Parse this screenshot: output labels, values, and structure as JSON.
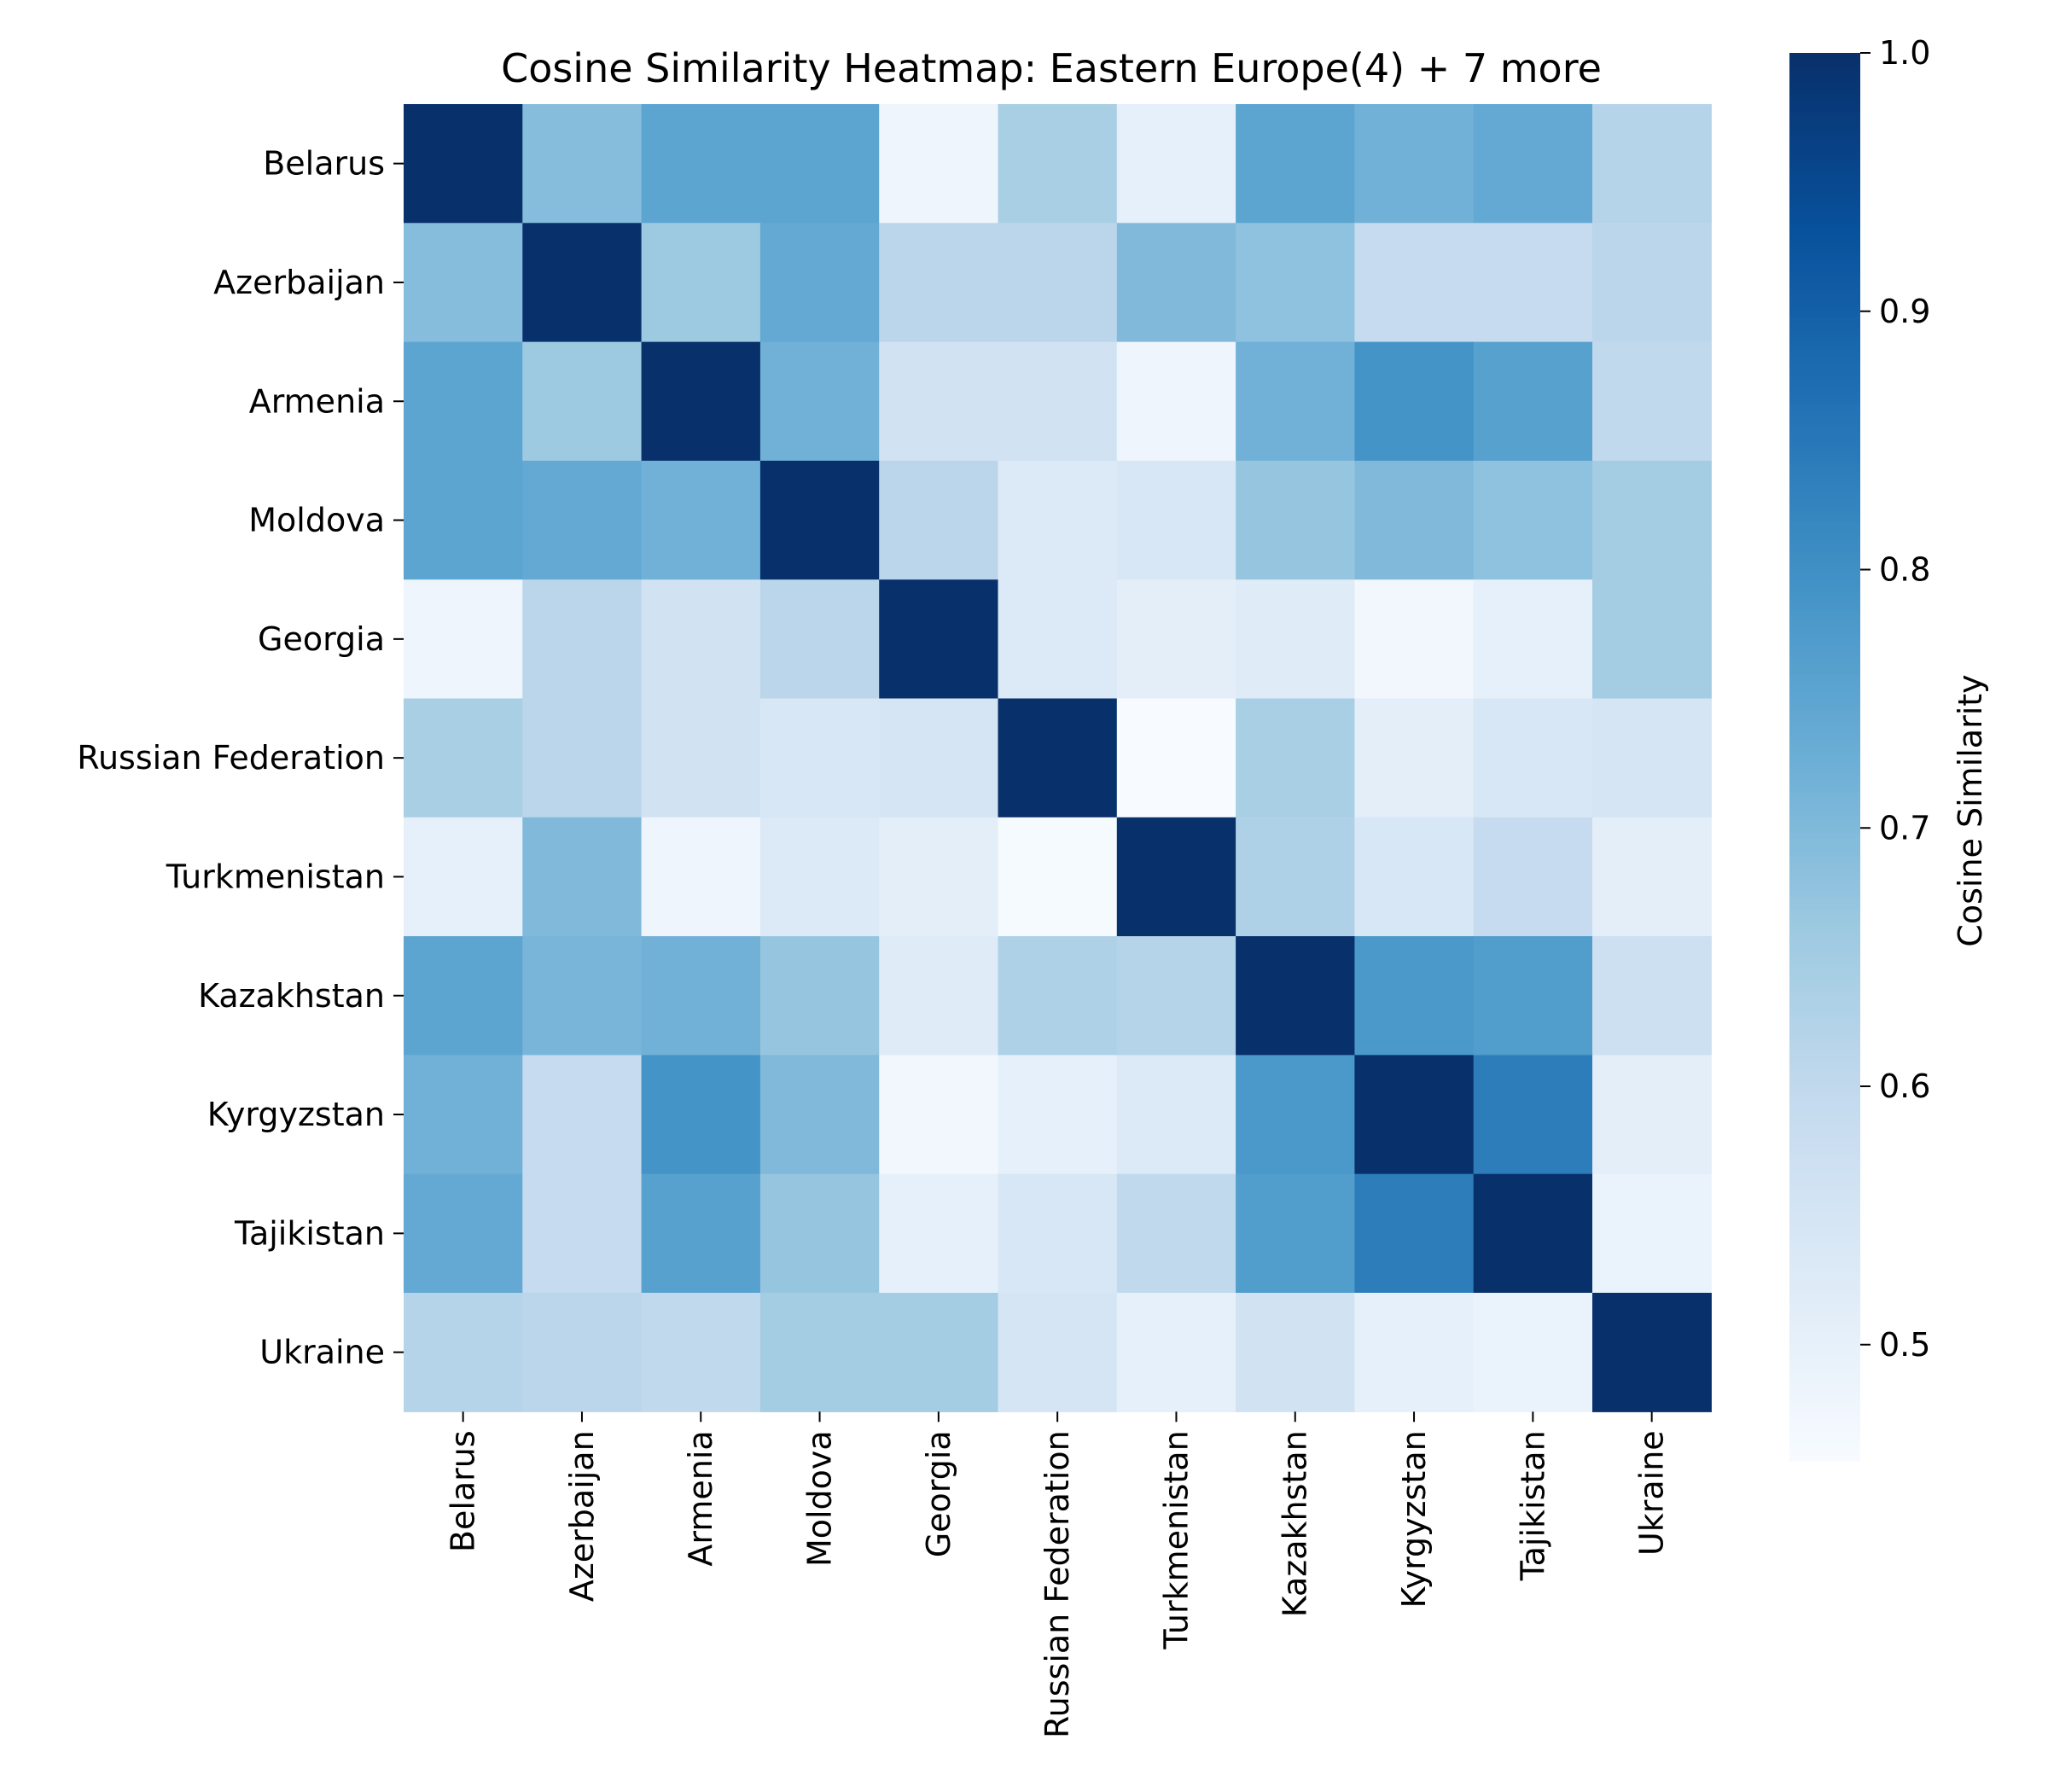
{
  "chart_data": {
    "type": "heatmap",
    "title": "Cosine Similarity Heatmap: Eastern Europe(4) + 7 more",
    "row_labels": [
      "Belarus",
      "Azerbaijan",
      "Armenia",
      "Moldova",
      "Georgia",
      "Russian Federation",
      "Turkmenistan",
      "Kazakhstan",
      "Kyrgyzstan",
      "Tajikistan",
      "Ukraine"
    ],
    "col_labels": [
      "Belarus",
      "Azerbaijan",
      "Armenia",
      "Moldova",
      "Georgia",
      "Russian Federation",
      "Turkmenistan",
      "Kazakhstan",
      "Kyrgyzstan",
      "Tajikistan",
      "Ukraine"
    ],
    "values": [
      [
        1.0,
        0.69,
        0.75,
        0.75,
        0.48,
        0.64,
        0.5,
        0.75,
        0.72,
        0.74,
        0.62
      ],
      [
        0.69,
        1.0,
        0.66,
        0.74,
        0.61,
        0.61,
        0.7,
        0.68,
        0.59,
        0.59,
        0.61
      ],
      [
        0.75,
        0.66,
        1.0,
        0.72,
        0.56,
        0.56,
        0.48,
        0.72,
        0.79,
        0.76,
        0.6
      ],
      [
        0.75,
        0.74,
        0.72,
        1.0,
        0.61,
        0.53,
        0.54,
        0.67,
        0.7,
        0.68,
        0.65
      ],
      [
        0.48,
        0.61,
        0.56,
        0.61,
        1.0,
        0.53,
        0.51,
        0.52,
        0.47,
        0.5,
        0.65
      ],
      [
        0.64,
        0.61,
        0.56,
        0.54,
        0.55,
        1.0,
        0.45,
        0.64,
        0.51,
        0.54,
        0.55
      ],
      [
        0.5,
        0.7,
        0.48,
        0.53,
        0.51,
        0.46,
        1.0,
        0.63,
        0.54,
        0.59,
        0.51
      ],
      [
        0.75,
        0.71,
        0.72,
        0.67,
        0.52,
        0.63,
        0.62,
        1.0,
        0.78,
        0.77,
        0.57
      ],
      [
        0.72,
        0.59,
        0.79,
        0.7,
        0.47,
        0.5,
        0.53,
        0.78,
        1.0,
        0.84,
        0.51
      ],
      [
        0.74,
        0.59,
        0.76,
        0.67,
        0.5,
        0.54,
        0.6,
        0.77,
        0.84,
        1.0,
        0.49
      ],
      [
        0.62,
        0.61,
        0.6,
        0.65,
        0.65,
        0.55,
        0.5,
        0.56,
        0.5,
        0.49,
        1.0
      ]
    ],
    "colorbar": {
      "label": "Cosine Similarity",
      "range": [
        0.455,
        1.0
      ],
      "ticks": [
        "0.5",
        "0.6",
        "0.7",
        "0.8",
        "0.9",
        "1.0"
      ],
      "colormap": "Blues"
    }
  }
}
